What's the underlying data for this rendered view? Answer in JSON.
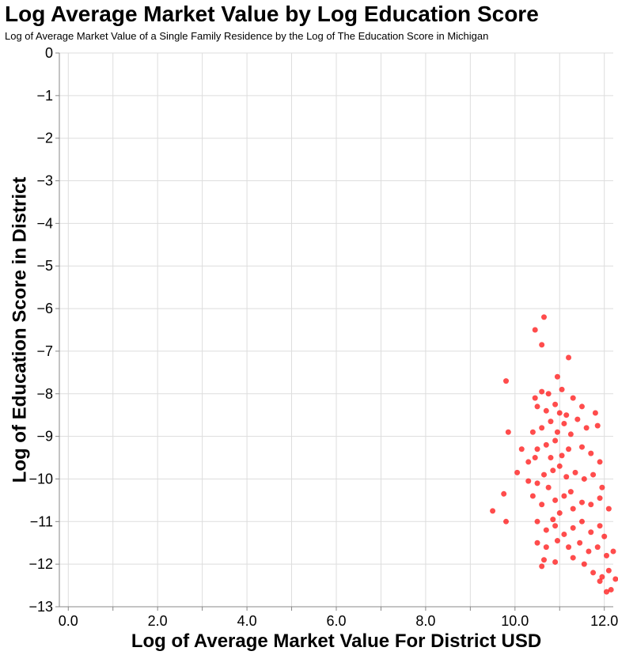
{
  "chart_data": {
    "type": "scatter",
    "title": "Log Average Market Value by Log Education Score",
    "subtitle": "Log of Average Market Value of a Single Family Residence by the Log of The Education Score in Michigan",
    "xlabel": "Log of Average Market Value For District USD",
    "ylabel": "Log of Education Score in District",
    "xlim": [
      -0.2,
      12.2
    ],
    "ylim": [
      -13,
      0
    ],
    "x_ticks": [
      "0.0",
      "2.0",
      "4.0",
      "6.0",
      "8.0",
      "10.0",
      "12.0"
    ],
    "x_tick_values": [
      0,
      2,
      4,
      6,
      8,
      10,
      12
    ],
    "y_ticks": [
      "0",
      "−1",
      "−2",
      "−3",
      "−4",
      "−5",
      "−6",
      "−7",
      "−8",
      "−9",
      "−10",
      "−11",
      "−12",
      "−13"
    ],
    "y_tick_values": [
      0,
      -1,
      -2,
      -3,
      -4,
      -5,
      -6,
      -7,
      -8,
      -9,
      -10,
      -11,
      -12,
      -13
    ],
    "grid": true,
    "point_color": "#ff0000",
    "points": [
      [
        10.65,
        -6.2
      ],
      [
        10.45,
        -6.5
      ],
      [
        10.6,
        -6.85
      ],
      [
        11.2,
        -7.15
      ],
      [
        9.8,
        -7.7
      ],
      [
        10.95,
        -7.6
      ],
      [
        10.45,
        -8.1
      ],
      [
        10.6,
        -7.95
      ],
      [
        10.75,
        -8.0
      ],
      [
        10.9,
        -8.25
      ],
      [
        11.05,
        -7.9
      ],
      [
        11.3,
        -8.1
      ],
      [
        11.5,
        -8.3
      ],
      [
        11.8,
        -8.45
      ],
      [
        10.5,
        -8.3
      ],
      [
        11.0,
        -8.45
      ],
      [
        11.15,
        -8.5
      ],
      [
        10.7,
        -8.4
      ],
      [
        9.85,
        -8.9
      ],
      [
        10.4,
        -8.9
      ],
      [
        10.6,
        -8.8
      ],
      [
        10.8,
        -8.65
      ],
      [
        11.1,
        -8.7
      ],
      [
        11.4,
        -8.6
      ],
      [
        11.6,
        -8.8
      ],
      [
        11.85,
        -8.75
      ],
      [
        10.95,
        -8.9
      ],
      [
        11.25,
        -8.95
      ],
      [
        10.15,
        -9.3
      ],
      [
        10.5,
        -9.3
      ],
      [
        10.45,
        -9.5
      ],
      [
        10.3,
        -9.6
      ],
      [
        10.7,
        -9.2
      ],
      [
        10.9,
        -9.1
      ],
      [
        11.2,
        -9.3
      ],
      [
        11.5,
        -9.25
      ],
      [
        11.7,
        -9.4
      ],
      [
        11.9,
        -9.6
      ],
      [
        10.8,
        -9.5
      ],
      [
        11.05,
        -9.45
      ],
      [
        10.05,
        -9.85
      ],
      [
        10.3,
        -10.05
      ],
      [
        10.5,
        -10.1
      ],
      [
        10.65,
        -9.9
      ],
      [
        10.85,
        -9.8
      ],
      [
        11.0,
        -9.7
      ],
      [
        11.15,
        -9.95
      ],
      [
        11.35,
        -9.85
      ],
      [
        11.55,
        -10.0
      ],
      [
        11.75,
        -9.9
      ],
      [
        11.95,
        -10.2
      ],
      [
        10.75,
        -10.2
      ],
      [
        11.25,
        -10.3
      ],
      [
        9.75,
        -10.35
      ],
      [
        10.4,
        -10.4
      ],
      [
        10.6,
        -10.6
      ],
      [
        10.9,
        -10.5
      ],
      [
        11.1,
        -10.4
      ],
      [
        11.3,
        -10.7
      ],
      [
        11.5,
        -10.55
      ],
      [
        11.7,
        -10.6
      ],
      [
        11.9,
        -10.45
      ],
      [
        12.1,
        -10.7
      ],
      [
        11.0,
        -10.8
      ],
      [
        9.5,
        -10.75
      ],
      [
        9.8,
        -11.0
      ],
      [
        10.5,
        -11.0
      ],
      [
        10.7,
        -11.2
      ],
      [
        10.9,
        -11.1
      ],
      [
        11.1,
        -11.3
      ],
      [
        11.3,
        -11.15
      ],
      [
        11.5,
        -11.0
      ],
      [
        11.7,
        -11.25
      ],
      [
        11.9,
        -11.1
      ],
      [
        12.0,
        -11.35
      ],
      [
        10.85,
        -10.95
      ],
      [
        10.5,
        -11.5
      ],
      [
        10.7,
        -11.6
      ],
      [
        10.95,
        -11.45
      ],
      [
        11.2,
        -11.6
      ],
      [
        11.45,
        -11.5
      ],
      [
        11.65,
        -11.7
      ],
      [
        11.85,
        -11.6
      ],
      [
        12.05,
        -11.8
      ],
      [
        12.2,
        -11.7
      ],
      [
        10.65,
        -11.9
      ],
      [
        10.6,
        -12.05
      ],
      [
        10.9,
        -11.95
      ],
      [
        11.3,
        -11.85
      ],
      [
        11.55,
        -12.0
      ],
      [
        11.75,
        -12.2
      ],
      [
        11.95,
        -12.3
      ],
      [
        12.1,
        -12.15
      ],
      [
        12.15,
        -12.6
      ],
      [
        12.25,
        -12.35
      ],
      [
        12.05,
        -12.65
      ],
      [
        11.9,
        -12.4
      ]
    ]
  }
}
